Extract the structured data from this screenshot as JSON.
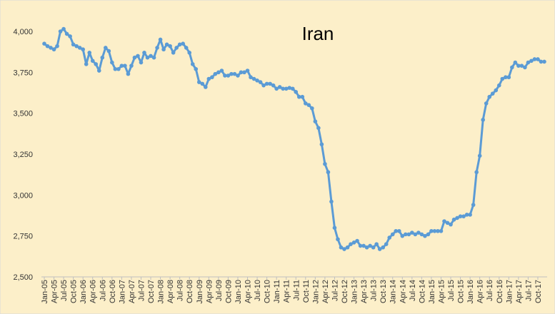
{
  "chart_data": {
    "type": "line",
    "title": "Iran",
    "color": "#5b9bd5",
    "categories": [
      "Jan-05",
      null,
      null,
      "Apr-05",
      null,
      null,
      "Jul-05",
      null,
      null,
      "Oct-05",
      null,
      null,
      "Jan-06",
      null,
      null,
      "Apr-06",
      null,
      null,
      "Jul-06",
      null,
      null,
      "Oct-06",
      null,
      null,
      "Jan-07",
      null,
      null,
      "Apr-07",
      null,
      null,
      "Jul-07",
      null,
      null,
      "Oct-07",
      null,
      null,
      "Jan-08",
      null,
      null,
      "Apr-08",
      null,
      null,
      "Jul-08",
      null,
      null,
      "Oct-08",
      null,
      null,
      "Jan-09",
      null,
      null,
      "Apr-09",
      null,
      null,
      "Jul-09",
      null,
      null,
      "Oct-09",
      null,
      null,
      "Jan-10",
      null,
      null,
      "Apr-10",
      null,
      null,
      "Jul-10",
      null,
      null,
      "Oct-10",
      null,
      null,
      "Jan-11",
      null,
      null,
      "Apr-11",
      null,
      null,
      "Jul-11",
      null,
      null,
      "Oct-11",
      null,
      null,
      "Jan-12",
      null,
      null,
      "Apr-12",
      null,
      null,
      "Jul-12",
      null,
      null,
      "Oct-12",
      null,
      null,
      "Jan-13",
      null,
      null,
      "Apr-13",
      null,
      null,
      "Jul-13",
      null,
      null,
      "Oct-13",
      null,
      null,
      "Jan-14",
      null,
      null,
      "Apr-14",
      null,
      null,
      "Jul-14",
      null,
      null,
      "Oct-14",
      null,
      null,
      "Jan-15",
      null,
      null,
      "Apr-15",
      null,
      null,
      "Jul-15",
      null,
      null,
      "Oct-15",
      null,
      null,
      "Jan-16",
      null,
      null,
      "Apr-16",
      null,
      null,
      "Jul-16",
      null,
      null,
      "Oct-16",
      null,
      null,
      "Jan-17",
      null,
      null,
      "Apr-17",
      null,
      null,
      "Jul-17",
      null,
      null,
      "Oct-17",
      null,
      null
    ],
    "values": [
      3925,
      3910,
      3900,
      3890,
      3910,
      4000,
      4015,
      3985,
      3970,
      3920,
      3910,
      3900,
      3890,
      3800,
      3870,
      3820,
      3800,
      3760,
      3840,
      3900,
      3880,
      3810,
      3770,
      3770,
      3790,
      3790,
      3740,
      3790,
      3840,
      3850,
      3810,
      3870,
      3840,
      3850,
      3840,
      3900,
      3950,
      3890,
      3920,
      3910,
      3870,
      3900,
      3920,
      3925,
      3900,
      3870,
      3800,
      3770,
      3690,
      3680,
      3660,
      3710,
      3720,
      3740,
      3750,
      3760,
      3730,
      3730,
      3740,
      3740,
      3730,
      3750,
      3750,
      3760,
      3720,
      3710,
      3700,
      3690,
      3670,
      3680,
      3680,
      3670,
      3650,
      3660,
      3650,
      3650,
      3655,
      3650,
      3630,
      3600,
      3600,
      3560,
      3550,
      3530,
      3450,
      3410,
      3310,
      3190,
      3140,
      2960,
      2800,
      2730,
      2680,
      2670,
      2680,
      2700,
      2710,
      2720,
      2690,
      2690,
      2680,
      2690,
      2680,
      2700,
      2670,
      2680,
      2700,
      2740,
      2760,
      2780,
      2780,
      2750,
      2760,
      2760,
      2770,
      2760,
      2770,
      2760,
      2750,
      2760,
      2780,
      2780,
      2780,
      2780,
      2840,
      2830,
      2820,
      2850,
      2860,
      2870,
      2870,
      2880,
      2880,
      2940,
      3140,
      3240,
      3460,
      3560,
      3600,
      3620,
      3640,
      3670,
      3710,
      3720,
      3720,
      3780,
      3810,
      3790,
      3790,
      3780,
      3810,
      3820,
      3830,
      3830,
      3815,
      3815
    ],
    "ylim": [
      2500,
      4000
    ],
    "yticks": [
      {
        "value": 2500,
        "label": "2,500"
      },
      {
        "value": 2750,
        "label": "2,750"
      },
      {
        "value": 3000,
        "label": "3,000"
      },
      {
        "value": 3250,
        "label": "3,250"
      },
      {
        "value": 3500,
        "label": "3,500"
      },
      {
        "value": 3750,
        "label": "3,750"
      },
      {
        "value": 4000,
        "label": "4,000"
      }
    ],
    "grid": false
  }
}
